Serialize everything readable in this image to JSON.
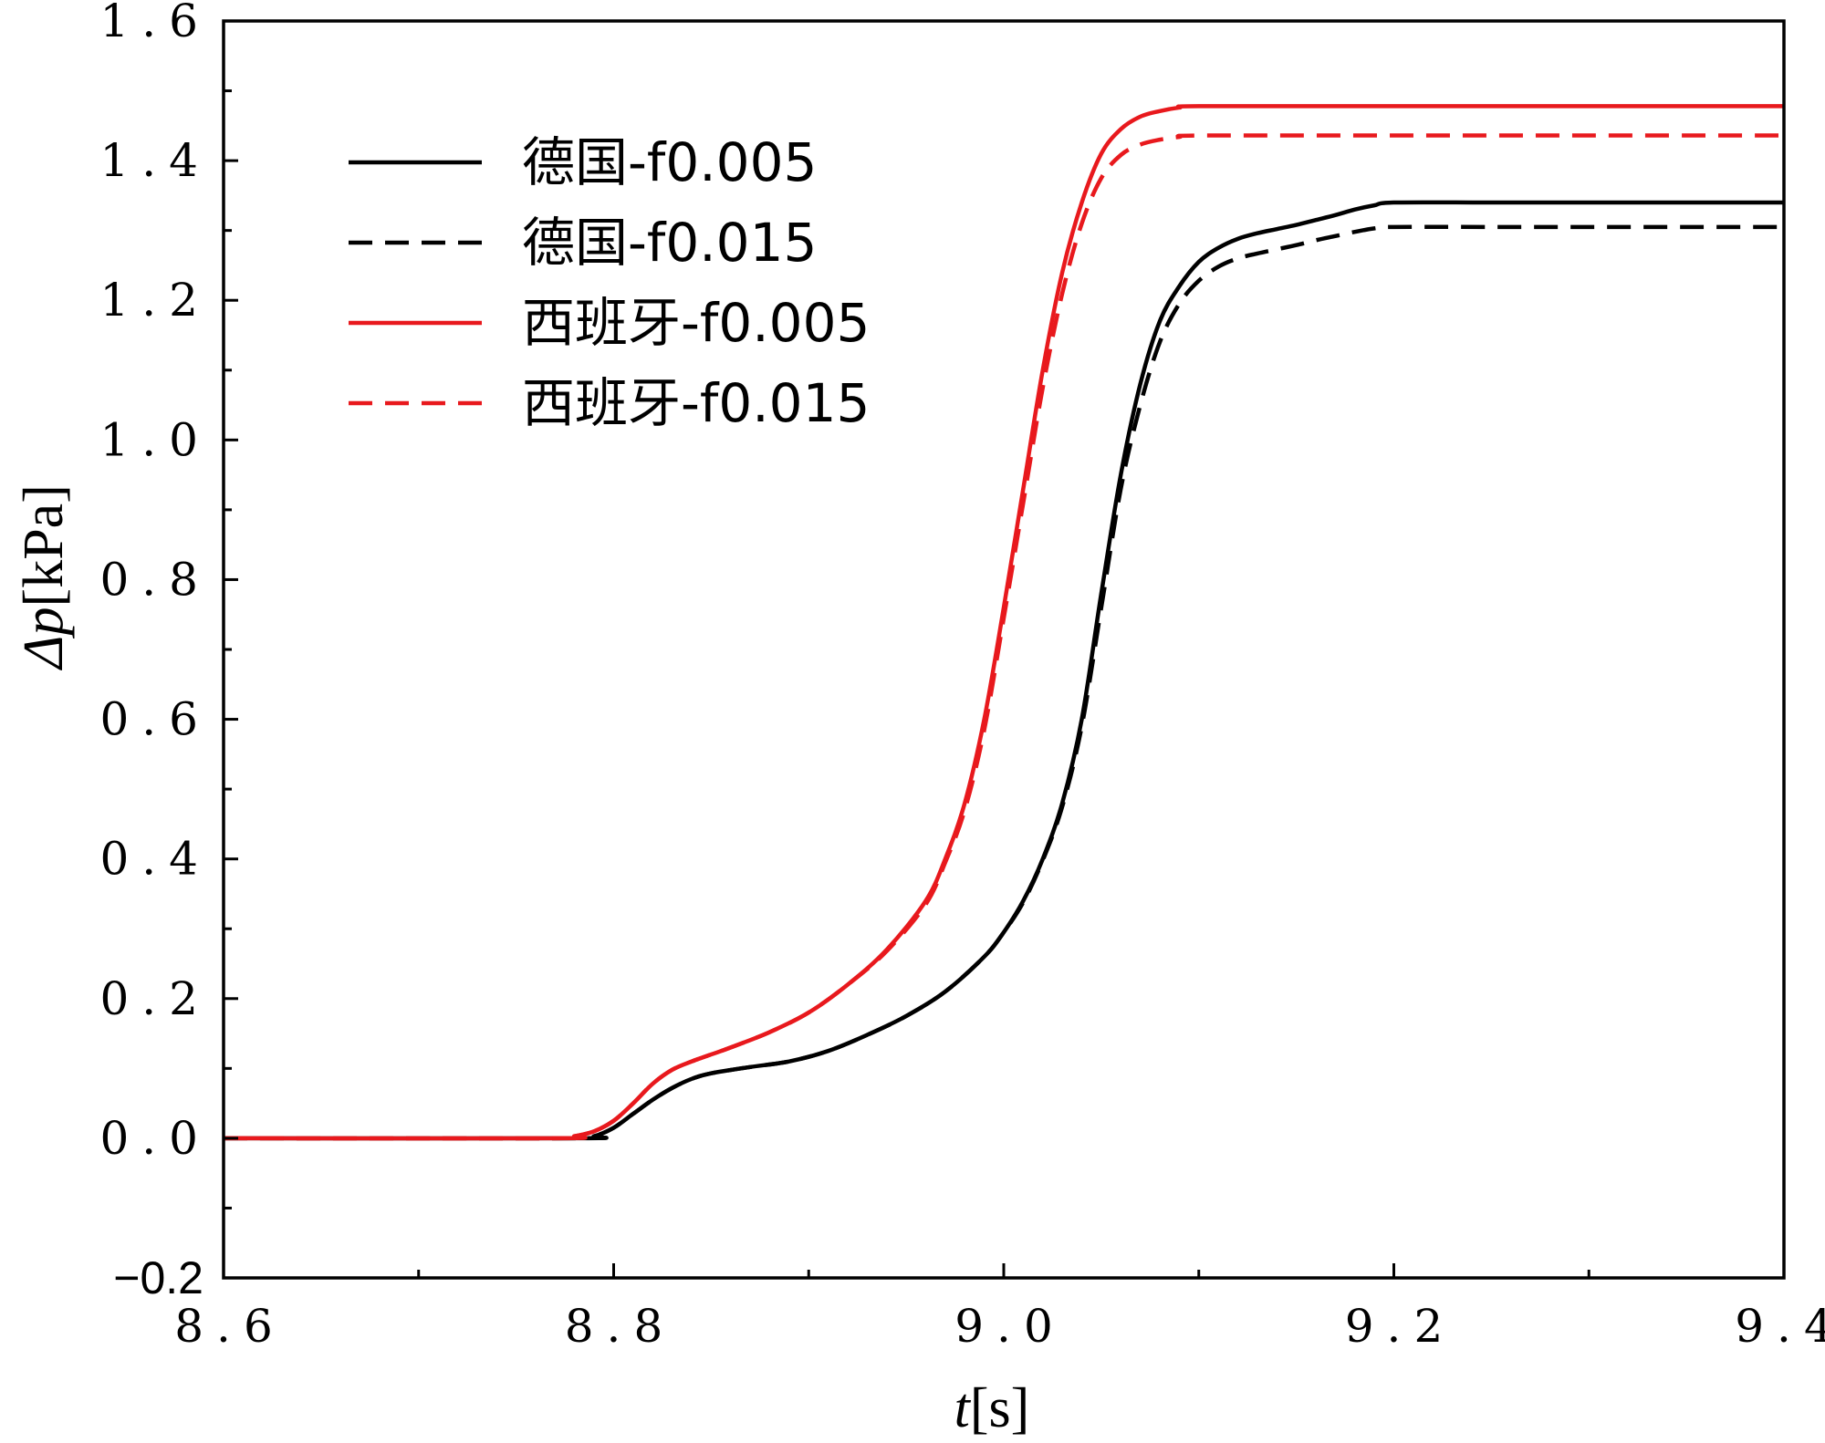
{
  "chart_data": {
    "type": "line",
    "title": "",
    "xlabel": {
      "symbol": "t",
      "unit": "[s]"
    },
    "ylabel": {
      "symbol": "Δp",
      "unit": "[kPa]"
    },
    "xlim": [
      8.6,
      9.4
    ],
    "ylim": [
      -0.2,
      1.6
    ],
    "x_ticks": [
      {
        "value": 8.6,
        "label": "8.6"
      },
      {
        "value": 8.8,
        "label": "8.8"
      },
      {
        "value": 9.0,
        "label": "9.0"
      },
      {
        "value": 9.2,
        "label": "9.2"
      },
      {
        "value": 9.4,
        "label": "9.4"
      }
    ],
    "y_ticks": [
      {
        "value": -0.2,
        "label": "−0.2"
      },
      {
        "value": 0.0,
        "label": "0.0"
      },
      {
        "value": 0.2,
        "label": "0.2"
      },
      {
        "value": 0.4,
        "label": "0.4"
      },
      {
        "value": 0.6,
        "label": "0.6"
      },
      {
        "value": 0.8,
        "label": "0.8"
      },
      {
        "value": 1.0,
        "label": "1.0"
      },
      {
        "value": 1.2,
        "label": "1.2"
      },
      {
        "value": 1.4,
        "label": "1.4"
      },
      {
        "value": 1.6,
        "label": "1.6"
      }
    ],
    "grid": false,
    "legend_position": "top-left",
    "series": [
      {
        "name": "德国-f0.005",
        "color": "#000000",
        "dash": "solid",
        "x": [
          8.6,
          8.78,
          8.79,
          8.8,
          8.81,
          8.82,
          8.83,
          8.84,
          8.85,
          8.87,
          8.89,
          8.91,
          8.93,
          8.95,
          8.97,
          8.99,
          9.0,
          9.01,
          9.02,
          9.03,
          9.04,
          9.05,
          9.06,
          9.07,
          9.08,
          9.09,
          9.1,
          9.11,
          9.12,
          9.13,
          9.14,
          9.15,
          9.16,
          9.17,
          9.18,
          9.19,
          9.2,
          9.25,
          9.3,
          9.35,
          9.4
        ],
        "y": [
          0.0,
          0.0,
          0.003,
          0.015,
          0.035,
          0.055,
          0.072,
          0.085,
          0.093,
          0.102,
          0.11,
          0.125,
          0.148,
          0.175,
          0.21,
          0.26,
          0.295,
          0.34,
          0.4,
          0.48,
          0.6,
          0.78,
          0.95,
          1.08,
          1.17,
          1.22,
          1.255,
          1.275,
          1.288,
          1.296,
          1.302,
          1.308,
          1.315,
          1.322,
          1.33,
          1.336,
          1.34,
          1.34,
          1.34,
          1.34,
          1.34
        ]
      },
      {
        "name": "德国-f0.015",
        "color": "#000000",
        "dash": "dashed",
        "x": [
          8.6,
          8.78,
          8.79,
          8.8,
          8.81,
          8.82,
          8.83,
          8.84,
          8.85,
          8.87,
          8.89,
          8.91,
          8.93,
          8.95,
          8.97,
          8.99,
          9.0,
          9.01,
          9.02,
          9.03,
          9.04,
          9.05,
          9.06,
          9.07,
          9.08,
          9.09,
          9.1,
          9.11,
          9.12,
          9.13,
          9.14,
          9.15,
          9.16,
          9.17,
          9.18,
          9.19,
          9.2,
          9.25,
          9.3,
          9.35,
          9.4
        ],
        "y": [
          0.0,
          0.0,
          0.003,
          0.015,
          0.035,
          0.055,
          0.072,
          0.085,
          0.093,
          0.102,
          0.11,
          0.125,
          0.148,
          0.175,
          0.21,
          0.26,
          0.295,
          0.338,
          0.398,
          0.475,
          0.59,
          0.76,
          0.93,
          1.05,
          1.14,
          1.195,
          1.228,
          1.248,
          1.26,
          1.267,
          1.273,
          1.279,
          1.286,
          1.292,
          1.298,
          1.303,
          1.305,
          1.305,
          1.305,
          1.305,
          1.305
        ]
      },
      {
        "name": "西班牙-f0.005",
        "color": "#e8191d",
        "dash": "solid",
        "x": [
          8.6,
          8.77,
          8.78,
          8.79,
          8.8,
          8.81,
          8.82,
          8.83,
          8.84,
          8.85,
          8.86,
          8.88,
          8.9,
          8.92,
          8.94,
          8.96,
          8.97,
          8.98,
          8.99,
          9.0,
          9.01,
          9.02,
          9.03,
          9.04,
          9.05,
          9.06,
          9.07,
          9.08,
          9.09,
          9.1,
          9.2,
          9.3,
          9.4
        ],
        "y": [
          0.0,
          0.0,
          0.003,
          0.01,
          0.025,
          0.05,
          0.078,
          0.098,
          0.11,
          0.12,
          0.13,
          0.152,
          0.18,
          0.22,
          0.27,
          0.34,
          0.4,
          0.48,
          0.6,
          0.76,
          0.93,
          1.1,
          1.24,
          1.34,
          1.41,
          1.445,
          1.463,
          1.471,
          1.476,
          1.478,
          1.478,
          1.478,
          1.478
        ]
      },
      {
        "name": "西班牙-f0.015",
        "color": "#e8191d",
        "dash": "dashed",
        "x": [
          8.6,
          8.77,
          8.78,
          8.79,
          8.8,
          8.81,
          8.82,
          8.83,
          8.84,
          8.85,
          8.86,
          8.88,
          8.9,
          8.92,
          8.94,
          8.96,
          8.97,
          8.98,
          8.99,
          9.0,
          9.01,
          9.02,
          9.03,
          9.04,
          9.05,
          9.06,
          9.07,
          9.08,
          9.09,
          9.1,
          9.2,
          9.3,
          9.4
        ],
        "y": [
          0.0,
          0.0,
          0.003,
          0.01,
          0.025,
          0.05,
          0.078,
          0.098,
          0.11,
          0.12,
          0.13,
          0.152,
          0.18,
          0.22,
          0.268,
          0.335,
          0.395,
          0.47,
          0.585,
          0.745,
          0.91,
          1.075,
          1.21,
          1.31,
          1.375,
          1.408,
          1.423,
          1.43,
          1.434,
          1.436,
          1.436,
          1.436,
          1.436
        ]
      }
    ]
  }
}
